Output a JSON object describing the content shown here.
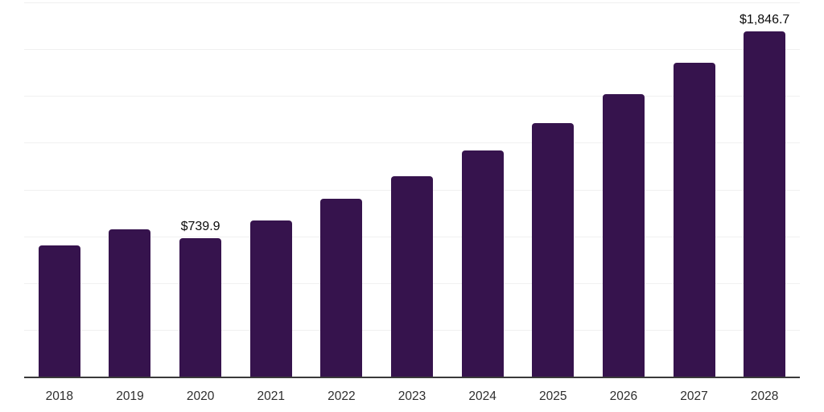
{
  "chart_data": {
    "type": "bar",
    "title": "",
    "xlabel": "",
    "ylabel": "",
    "categories": [
      "2018",
      "2019",
      "2020",
      "2021",
      "2022",
      "2023",
      "2024",
      "2025",
      "2026",
      "2027",
      "2028"
    ],
    "values": [
      700,
      788,
      739.9,
      836,
      949,
      1073,
      1210,
      1354,
      1509,
      1676,
      1846.7
    ],
    "point_labels": [
      "",
      "",
      "$739.9",
      "",
      "",
      "",
      "",
      "",
      "",
      "",
      "$1,846.7"
    ],
    "ylim": [
      0,
      2000
    ],
    "grid_step": 250,
    "grid": true,
    "legend_position": "none",
    "colors": {
      "bar": "#36134D",
      "gridline": "#f0f0f0",
      "axis_line": "#3a3a3a",
      "data_label": "#0b0b0b",
      "tick_label": "#2e2e2e",
      "background": "#ffffff"
    }
  }
}
